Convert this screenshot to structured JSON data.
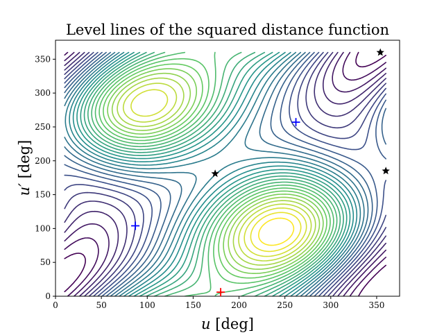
{
  "chart_data": {
    "type": "contour",
    "title": "Level lines of the squared distance function",
    "xlabel": "u [deg]",
    "ylabel": "u′ [deg]",
    "xlim": [
      0,
      375
    ],
    "ylim": [
      0,
      378
    ],
    "xticks": [
      0,
      50,
      100,
      150,
      200,
      250,
      300,
      350
    ],
    "yticks": [
      0,
      50,
      100,
      150,
      200,
      250,
      300,
      350
    ],
    "grid": false,
    "colormap": "viridis",
    "levels": 30,
    "contour_domain": {
      "x": [
        10,
        360
      ],
      "y": [
        0,
        360
      ]
    },
    "field": {
      "description": "level sets of a squared distance as function of u and u′; minima near (180, 0)/(180, 360), maxima near diagonal valleys",
      "formula_params": {
        "valley_offset_deg": 0,
        "ellipse_center_low": [
          185,
          20
        ],
        "ellipse_center_high": [
          175,
          340
        ]
      }
    },
    "markers": [
      {
        "name": "plus-blue-1",
        "shape": "plus",
        "color": "#0000ff",
        "x": 87,
        "y": 104
      },
      {
        "name": "plus-blue-2",
        "shape": "plus",
        "color": "#0000ff",
        "x": 262,
        "y": 257
      },
      {
        "name": "plus-red",
        "shape": "plus",
        "color": "#ff0000",
        "x": 180,
        "y": 6
      },
      {
        "name": "star-1",
        "shape": "star",
        "color": "#000000",
        "x": 174,
        "y": 181
      },
      {
        "name": "star-2",
        "shape": "star",
        "color": "#000000",
        "x": 354,
        "y": 360
      },
      {
        "name": "star-3",
        "shape": "star",
        "color": "#000000",
        "x": 360,
        "y": 185
      }
    ]
  }
}
